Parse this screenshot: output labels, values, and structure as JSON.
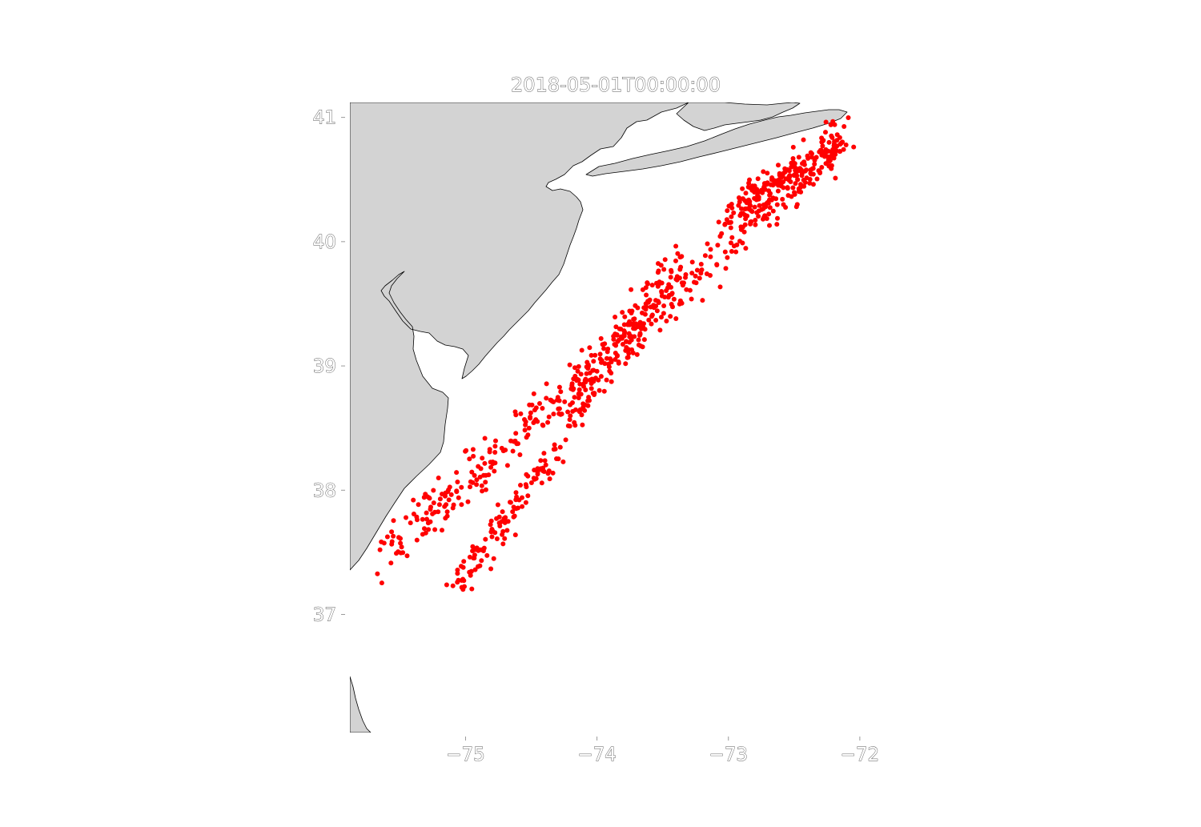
{
  "chart_data": {
    "type": "scatter",
    "title": "2018-05-01T00:00:00",
    "xlabel": "",
    "ylabel": "",
    "xlim": [
      -75.88,
      -71.78
    ],
    "ylim": [
      36.05,
      41.12
    ],
    "x_ticks": [
      -75,
      -74,
      -73,
      -72
    ],
    "x_tick_labels": [
      "−75",
      "−74",
      "−73",
      "−72"
    ],
    "y_ticks": [
      37,
      38,
      39,
      40,
      41
    ],
    "y_tick_labels": [
      "37",
      "38",
      "39",
      "40",
      "41"
    ],
    "grid": false,
    "land_color": "#d3d3d3",
    "coast_color": "#000000",
    "marker_color": "#ff0000",
    "series": [
      {
        "points_count_estimate": 900,
        "clusters": [
          {
            "lon_start": -75.62,
            "lat_start": 37.48,
            "lon_end": -72.15,
            "lat_end": 40.8,
            "half_width_lat": 0.3,
            "n": 420
          },
          {
            "lon_start": -75.05,
            "lat_start": 37.25,
            "lon_end": -74.3,
            "lat_end": 38.35,
            "half_width_lat": 0.22,
            "n": 120
          },
          {
            "lon_start": -74.2,
            "lat_start": 38.6,
            "lon_end": -73.35,
            "lat_end": 39.9,
            "half_width_lat": 0.28,
            "n": 160
          },
          {
            "lon_start": -73.0,
            "lat_start": 40.2,
            "lon_end": -72.1,
            "lat_end": 40.85,
            "half_width_lat": 0.22,
            "n": 200
          }
        ]
      }
    ]
  }
}
